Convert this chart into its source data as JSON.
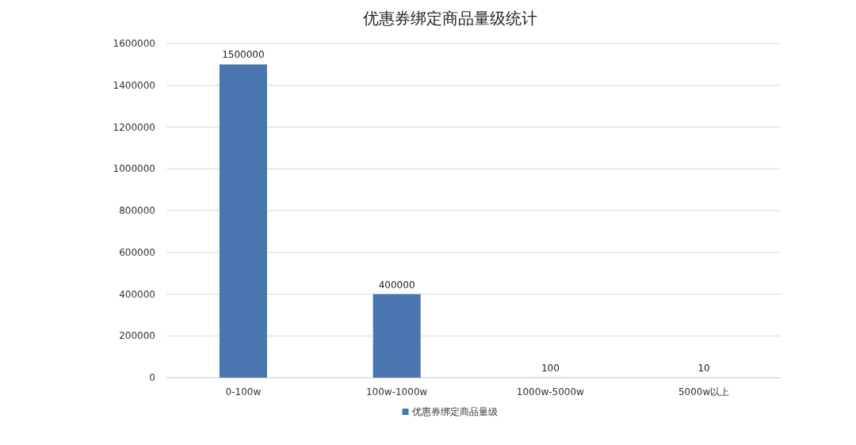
{
  "chart_data": {
    "type": "bar",
    "title": "优惠券绑定商品量级统计",
    "categories": [
      "0-100w",
      "100w-1000w",
      "1000w-5000w",
      "5000w以上"
    ],
    "series": [
      {
        "name": "优惠券绑定商品量级",
        "color": "#4a76b0",
        "values": [
          1500000,
          400000,
          100,
          10
        ]
      }
    ],
    "ylim": [
      0,
      1600000
    ],
    "yticks": [
      0,
      200000,
      400000,
      600000,
      800000,
      1000000,
      1200000,
      1400000,
      1600000
    ],
    "grid": "y",
    "legend": "bottom",
    "data_labels": true
  }
}
